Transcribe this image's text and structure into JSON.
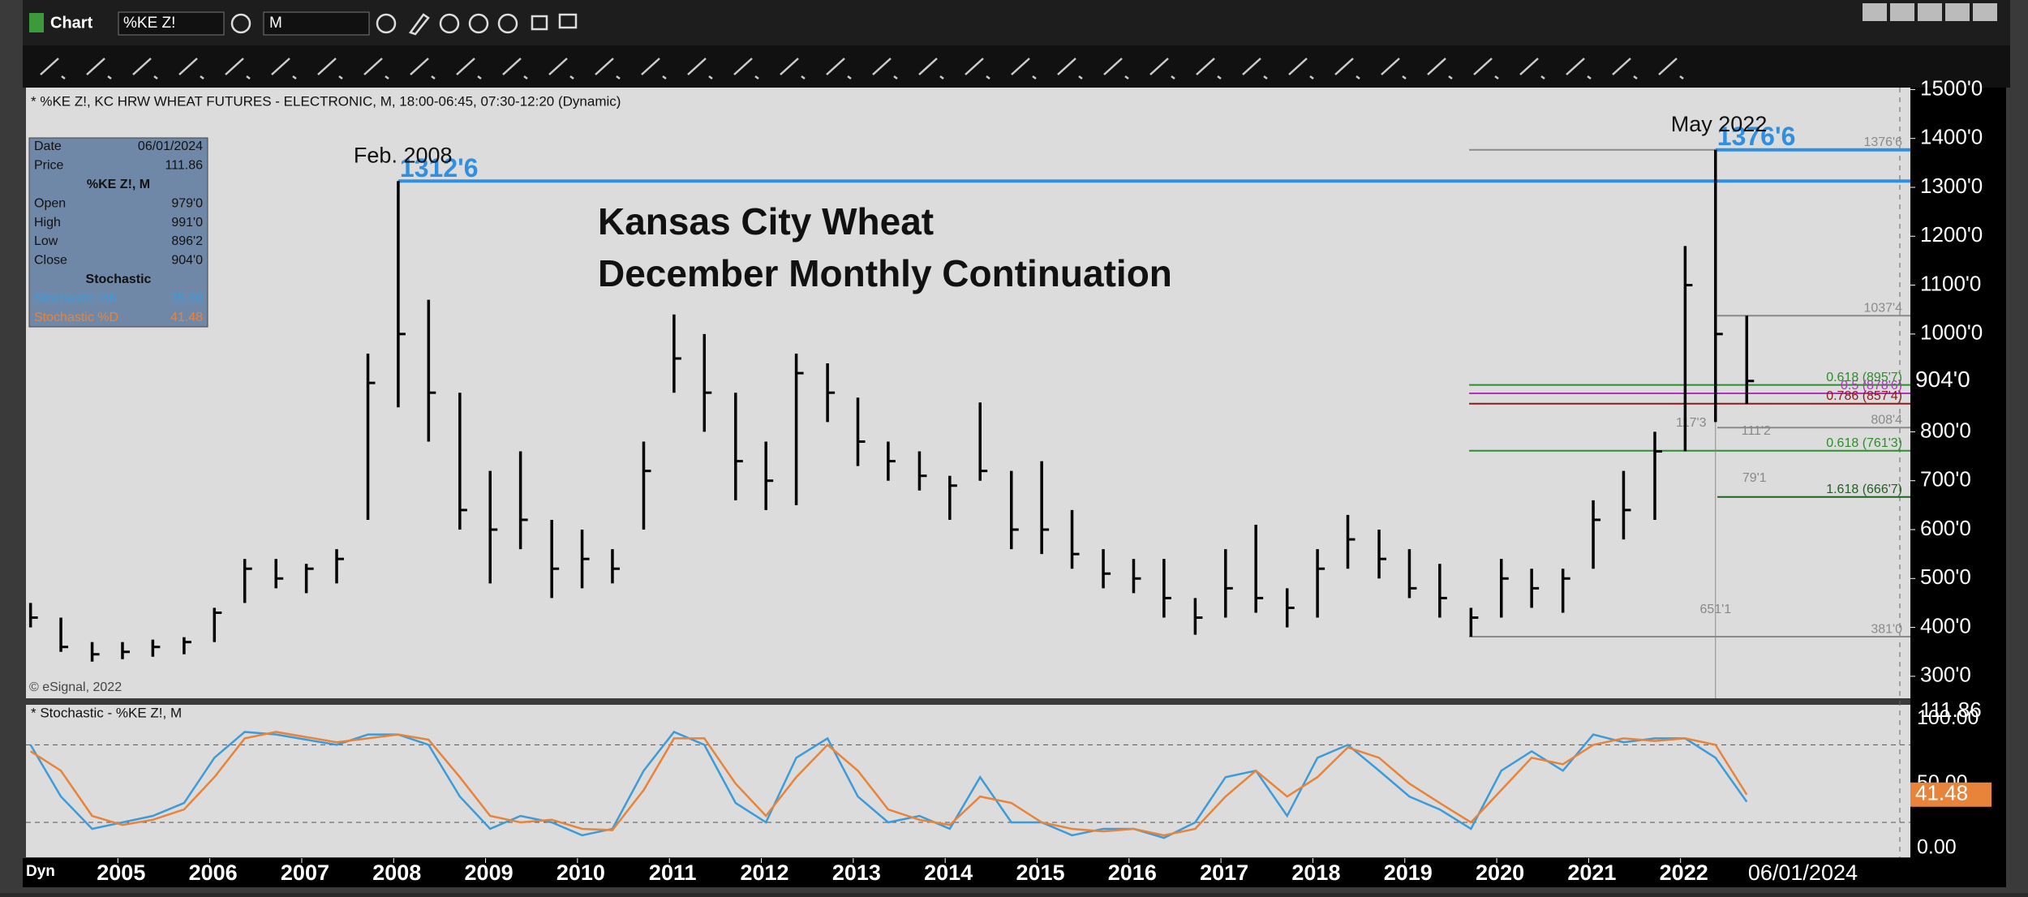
{
  "ui": {
    "window": "Chart",
    "symbol": "%KE Z!",
    "interval": "M",
    "header": "* %KE Z!, KC HRW WHEAT FUTURES - ELECTRONIC, M, 18:00-06:45, 07:30-12:20 (Dynamic)",
    "copyright": "© eSignal, 2022",
    "study_header": "* Stochastic - %KE Z!, M",
    "dyn": "Dyn",
    "date_label": "06/01/2024"
  },
  "info": {
    "rows": [
      [
        "Date",
        "06/01/2024"
      ],
      [
        "Price",
        "111.86"
      ],
      [
        "%KE Z!, M",
        ""
      ],
      [
        "Open",
        "979'0"
      ],
      [
        "High",
        "991'0"
      ],
      [
        "Low",
        "896'2"
      ],
      [
        "Close",
        "904'0"
      ],
      [
        "Stochastic",
        ""
      ],
      [
        "Stochastic %K",
        "35.90"
      ],
      [
        "Stochastic %D",
        "41.48"
      ]
    ]
  },
  "chart_data": [
    {
      "type": "ohlc",
      "title": "Kansas City Wheat",
      "subtitle": "December Monthly Continuation",
      "color": "#000000",
      "x": [
        2004.05,
        2004.38,
        2004.72,
        2005.05,
        2005.38,
        2005.72,
        2006.05,
        2006.38,
        2006.72,
        2007.05,
        2007.38,
        2007.72,
        2008.05,
        2008.38,
        2008.72,
        2009.05,
        2009.38,
        2009.72,
        2010.05,
        2010.38,
        2010.72,
        2011.05,
        2011.38,
        2011.72,
        2012.05,
        2012.38,
        2012.72,
        2013.05,
        2013.38,
        2013.72,
        2014.05,
        2014.38,
        2014.72,
        2015.05,
        2015.38,
        2015.72,
        2016.05,
        2016.38,
        2016.72,
        2017.05,
        2017.38,
        2017.72,
        2018.05,
        2018.38,
        2018.72,
        2019.05,
        2019.38,
        2019.72,
        2020.05,
        2020.38,
        2020.72,
        2021.05,
        2021.38,
        2021.72,
        2022.05,
        2022.38,
        2022.72
      ],
      "high": [
        450,
        420,
        370,
        370,
        375,
        380,
        440,
        540,
        540,
        530,
        560,
        960,
        1312.75,
        1070,
        880,
        720,
        760,
        620,
        600,
        560,
        780,
        1040,
        1000,
        880,
        780,
        960,
        940,
        870,
        780,
        760,
        710,
        860,
        720,
        740,
        640,
        560,
        540,
        540,
        460,
        560,
        610,
        480,
        560,
        630,
        600,
        560,
        530,
        440,
        540,
        520,
        520,
        660,
        720,
        800,
        1180,
        1376.75,
        1037.5
      ],
      "low": [
        400,
        350,
        330,
        335,
        340,
        345,
        370,
        450,
        480,
        470,
        490,
        620,
        850,
        780,
        600,
        490,
        560,
        460,
        480,
        490,
        600,
        880,
        800,
        660,
        640,
        650,
        820,
        730,
        700,
        680,
        620,
        700,
        560,
        550,
        520,
        480,
        470,
        420,
        385,
        420,
        430,
        400,
        420,
        520,
        500,
        460,
        420,
        381,
        420,
        440,
        430,
        520,
        580,
        620,
        760,
        820,
        857
      ],
      "close": [
        420,
        360,
        345,
        350,
        360,
        370,
        430,
        520,
        500,
        520,
        540,
        900,
        1000,
        880,
        640,
        600,
        620,
        520,
        540,
        520,
        720,
        950,
        880,
        740,
        700,
        920,
        880,
        780,
        740,
        710,
        690,
        720,
        600,
        600,
        550,
        510,
        500,
        460,
        420,
        480,
        460,
        440,
        520,
        580,
        540,
        480,
        460,
        420,
        500,
        480,
        500,
        620,
        640,
        760,
        1100,
        1000,
        904
      ],
      "last": {
        "value": 904,
        "label": "904'0"
      },
      "xlim": [
        2004.0,
        2024.5
      ],
      "xticks": [
        2005,
        2006,
        2007,
        2008,
        2009,
        2010,
        2011,
        2012,
        2013,
        2014,
        2015,
        2016,
        2017,
        2018,
        2019,
        2020,
        2021,
        2022
      ],
      "ylim": [
        255,
        1504
      ],
      "yticks": [
        {
          "value": 300,
          "label": "300'0"
        },
        {
          "value": 400,
          "label": "400'0"
        },
        {
          "value": 500,
          "label": "500'0"
        },
        {
          "value": 600,
          "label": "600'0"
        },
        {
          "value": 700,
          "label": "700'0"
        },
        {
          "value": 800,
          "label": "800'0"
        },
        {
          "value": 1000,
          "label": "1000'0"
        },
        {
          "value": 1100,
          "label": "1100'0"
        },
        {
          "value": 1200,
          "label": "1200'0"
        },
        {
          "value": 1300,
          "label": "1300'0"
        },
        {
          "value": 1400,
          "label": "1400'0"
        },
        {
          "value": 1500,
          "label": "1500'0"
        }
      ],
      "peaks": [
        {
          "note": "Feb. 2008",
          "label": "1312'6",
          "value": 1312.75,
          "x": 2008.05,
          "color": "#2f8fe0"
        },
        {
          "note": "May 2022",
          "label": "1376'6",
          "value": 1376.75,
          "x": 2022.38,
          "color": "#2f8fe0"
        }
      ],
      "levels": [
        {
          "label": "1376'6",
          "value": 1376.75,
          "x0": 2019.7,
          "color": "#8a8a8a"
        },
        {
          "label": "1037'4",
          "value": 1037.5,
          "x0": 2022.4,
          "color": "#8a8a8a"
        },
        {
          "label": "0.618 (895'7)",
          "value": 895.875,
          "x0": 2019.7,
          "color": "#2e8b2e"
        },
        {
          "label": "0.5 (878'6)",
          "value": 878.75,
          "x0": 2019.7,
          "color": "#b030c0"
        },
        {
          "label": "0.786 (857'4)",
          "value": 857.5,
          "x0": 2019.7,
          "color": "#8b1a1a"
        },
        {
          "label": "808'4",
          "value": 808.5,
          "x0": 2022.4,
          "color": "#8a8a8a"
        },
        {
          "label": "0.618 (761'3)",
          "value": 761.375,
          "x0": 2019.7,
          "color": "#2e8b2e"
        },
        {
          "label": "1.618 (666'7)",
          "value": 666.875,
          "x0": 2022.4,
          "color": "#1f5f1f"
        },
        {
          "label": "381'0",
          "value": 381,
          "x0": 2019.7,
          "color": "#8a8a8a"
        }
      ],
      "annotations": [
        "651'1",
        "117'3",
        "111'2",
        "79'1"
      ]
    },
    {
      "type": "stochastic",
      "ylim": [
        -7,
        111
      ],
      "yticks": [
        {
          "value": 0,
          "label": "0.00"
        },
        {
          "value": 50,
          "label": "50.00"
        },
        {
          "value": 100,
          "label": "100.00"
        }
      ],
      "bands": [
        20,
        80
      ],
      "top_label": "111.86",
      "last": {
        "value": 41.48,
        "label": "41.48"
      },
      "series": [
        {
          "name": "Stochastic %K",
          "color": "#3d9bd9",
          "values": [
            80,
            40,
            15,
            20,
            25,
            35,
            70,
            90,
            88,
            84,
            80,
            88,
            88,
            80,
            40,
            15,
            25,
            20,
            10,
            15,
            60,
            90,
            80,
            35,
            20,
            70,
            85,
            40,
            20,
            25,
            15,
            55,
            20,
            20,
            10,
            15,
            15,
            8,
            20,
            55,
            60,
            25,
            70,
            80,
            60,
            40,
            30,
            15,
            60,
            75,
            60,
            88,
            82,
            85,
            85,
            70,
            35.9
          ]
        },
        {
          "name": "Stochastic %D",
          "color": "#e8833a",
          "values": [
            75,
            60,
            25,
            18,
            22,
            30,
            55,
            85,
            90,
            86,
            82,
            85,
            88,
            84,
            55,
            25,
            20,
            22,
            15,
            14,
            45,
            85,
            85,
            50,
            25,
            55,
            80,
            60,
            30,
            22,
            18,
            40,
            35,
            20,
            15,
            13,
            15,
            10,
            15,
            40,
            60,
            40,
            55,
            78,
            70,
            50,
            35,
            20,
            45,
            70,
            65,
            80,
            85,
            83,
            85,
            80,
            41.48
          ]
        }
      ]
    }
  ]
}
